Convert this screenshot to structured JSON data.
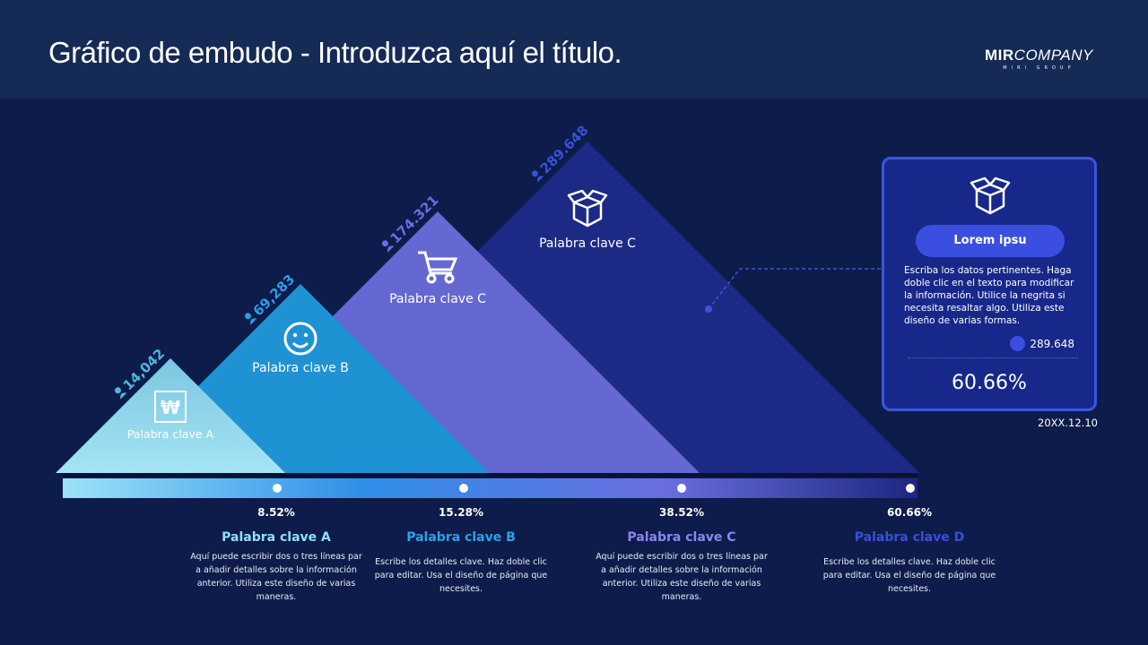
{
  "header": {
    "title": "Gráfico de embudo - Introduzca aquí el título.",
    "logo_main": "MIRI COMPANY",
    "logo_mir": "MIR",
    "logo_company": "COMPANY",
    "logo_sub": "MIRI GROUP"
  },
  "chart_data": {
    "type": "funnel",
    "stages": [
      {
        "label": "Palabra clave A",
        "value": "14,042",
        "percent": "8.52%",
        "icon": "won-icon",
        "color": "#8fd6ea"
      },
      {
        "label": "Palabra clave B",
        "value": "69,283",
        "percent": "15.28%",
        "icon": "smiley-icon",
        "color": "#1f92d4"
      },
      {
        "label": "Palabra clave C",
        "value": "174.321",
        "percent": "38.52%",
        "icon": "cart-icon",
        "color": "#6567d2"
      },
      {
        "label": "Palabra clave C",
        "value": "289.648",
        "percent": "60.66%",
        "icon": "box-icon",
        "color": "#1d2a85"
      }
    ]
  },
  "details": [
    {
      "title": "Palabra clave A",
      "color": "#8fe0f5",
      "text": "Aquí puede escribir dos o tres líneas par a añadir detalles sobre la información anterior. Utiliza este diseño de varias maneras."
    },
    {
      "title": "Palabra clave B",
      "color": "#2aa2e8",
      "text": "Escribe los detalles clave. Haz doble clic para editar. Usa el diseño de página que necesites."
    },
    {
      "title": "Palabra clave C",
      "color": "#8a86f0",
      "text": "Aquí puede escribir dos o tres líneas par a añadir detalles sobre la información anterior. Utiliza este diseño de varias maneras."
    },
    {
      "title": "Palabra clave D",
      "color": "#3a4fd8",
      "text": "Escribe los detalles clave. Haz doble clic para editar. Usa el diseño de página que necesites."
    }
  ],
  "card": {
    "button": "Lorem ipsu",
    "text": "Escriba los datos pertinentes. Haga doble clic en el texto para modificar la información. Utilice la negrita si necesita resaltar algo. Utiliza este diseño de varias formas.",
    "count": "289.648",
    "percent": "60.66%"
  },
  "date": "20XX.12.10"
}
